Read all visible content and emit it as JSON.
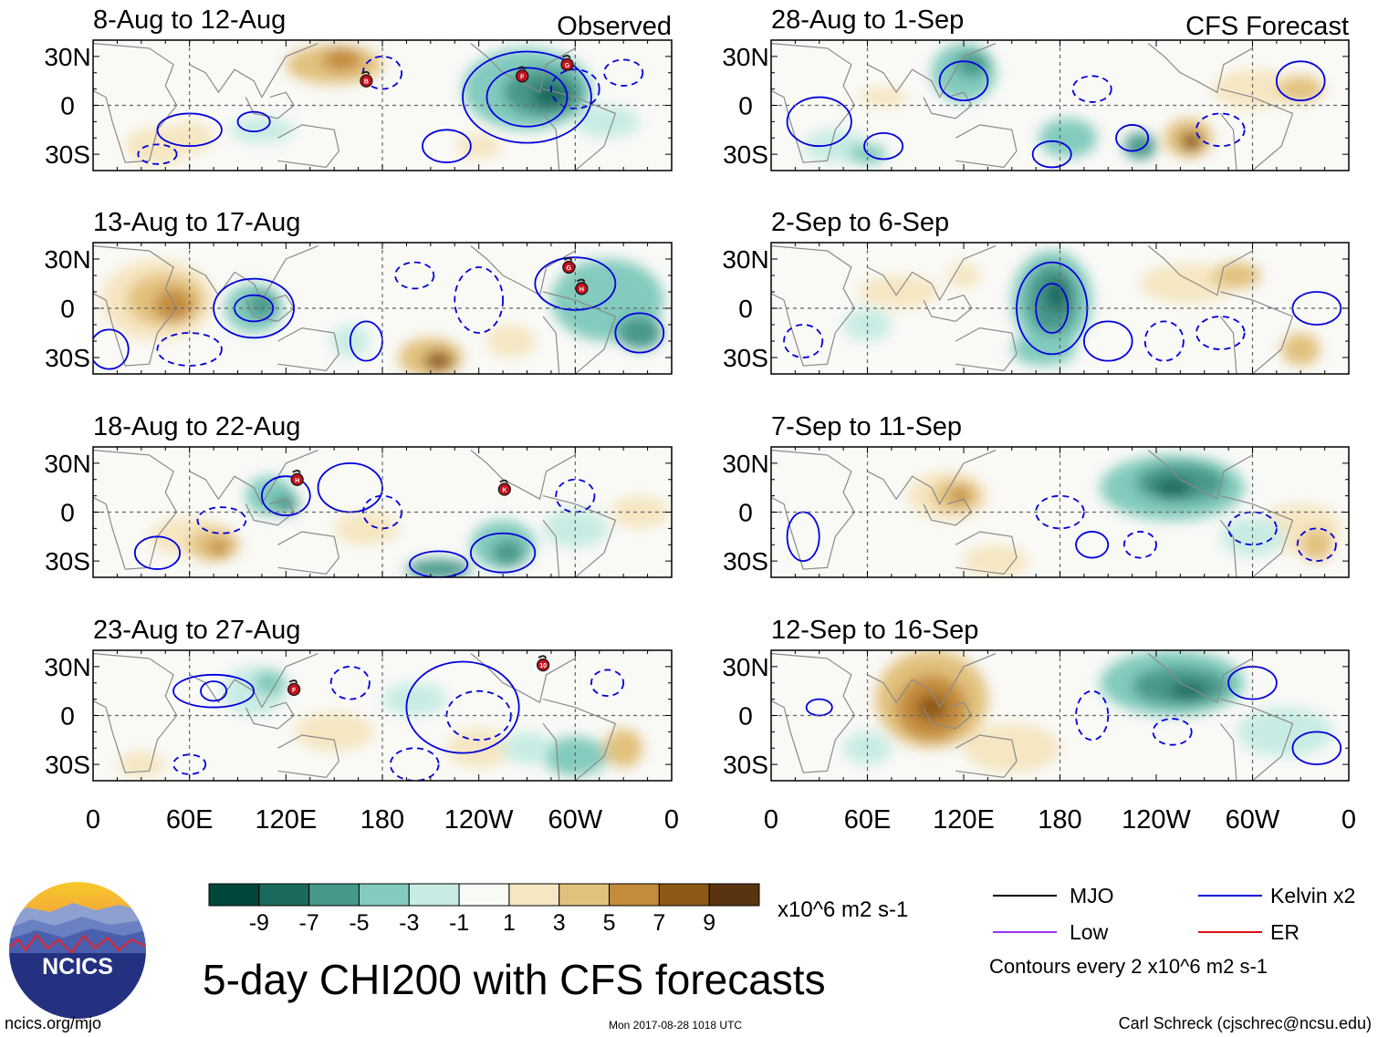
{
  "chart_data": {
    "type": "heatmap",
    "title": "5-day CHI200 with CFS forecasts",
    "variable": "CHI200 anomaly",
    "units": "x10^6 m2 s-1",
    "x_ticks": [
      "0",
      "60E",
      "120E",
      "180",
      "120W",
      "60W",
      "0"
    ],
    "y_ticks": [
      "30N",
      "0",
      "30S"
    ],
    "xlim": [
      0,
      360
    ],
    "ylim": [
      -40,
      40
    ],
    "colorbar": {
      "labels": [
        "-9",
        "-7",
        "-5",
        "-3",
        "-1",
        "1",
        "3",
        "5",
        "7",
        "9"
      ],
      "colors": [
        "#00473b",
        "#1a6b5e",
        "#46988b",
        "#82cbbe",
        "#c8ece4",
        "#f9f9f6",
        "#f6e6c1",
        "#e2c17d",
        "#c38b3c",
        "#8e5916",
        "#5a3411"
      ]
    },
    "panels": [
      {
        "period": "8-Aug to 12-Aug",
        "label": "Observed",
        "storms": [
          {
            "id": "B",
            "lon": 170,
            "lat": 15
          },
          {
            "id": "F",
            "lon": 267,
            "lat": 18
          },
          {
            "id": "G",
            "lon": 295,
            "lat": 25
          }
        ]
      },
      {
        "period": "13-Aug to 17-Aug",
        "label": "",
        "storms": [
          {
            "id": "G",
            "lon": 296,
            "lat": 25
          },
          {
            "id": "H",
            "lon": 304,
            "lat": 12
          }
        ]
      },
      {
        "period": "18-Aug to 22-Aug",
        "label": "",
        "storms": [
          {
            "id": "H",
            "lon": 127,
            "lat": 20
          },
          {
            "id": "K",
            "lon": 256,
            "lat": 14
          }
        ]
      },
      {
        "period": "23-Aug to 27-Aug",
        "label": "",
        "storms": [
          {
            "id": "F",
            "lon": 125,
            "lat": 16
          },
          {
            "id": "10",
            "lon": 280,
            "lat": 31
          }
        ]
      },
      {
        "period": "28-Aug to 1-Sep",
        "label": "CFS Forecast",
        "storms": []
      },
      {
        "period": "2-Sep to 6-Sep",
        "label": "",
        "storms": []
      },
      {
        "period": "7-Sep to 11-Sep",
        "label": "",
        "storms": []
      },
      {
        "period": "12-Sep to 16-Sep",
        "label": "",
        "storms": []
      }
    ],
    "legend": {
      "items": [
        {
          "name": "MJO",
          "color": "#000000"
        },
        {
          "name": "Kelvin x2",
          "color": "#0000dd"
        },
        {
          "name": "Low",
          "color": "#9933ee"
        },
        {
          "name": "ER",
          "color": "#dd1111"
        }
      ],
      "note": "Contours every 2 x10^6 m2 s-1"
    }
  },
  "logo": {
    "text": "NCICS"
  },
  "footer": {
    "url": "ncics.org/mjo",
    "timestamp": "Mon 2017-08-28 1018 UTC",
    "author": "Carl Schreck (cjschrec@ncsu.edu)"
  }
}
